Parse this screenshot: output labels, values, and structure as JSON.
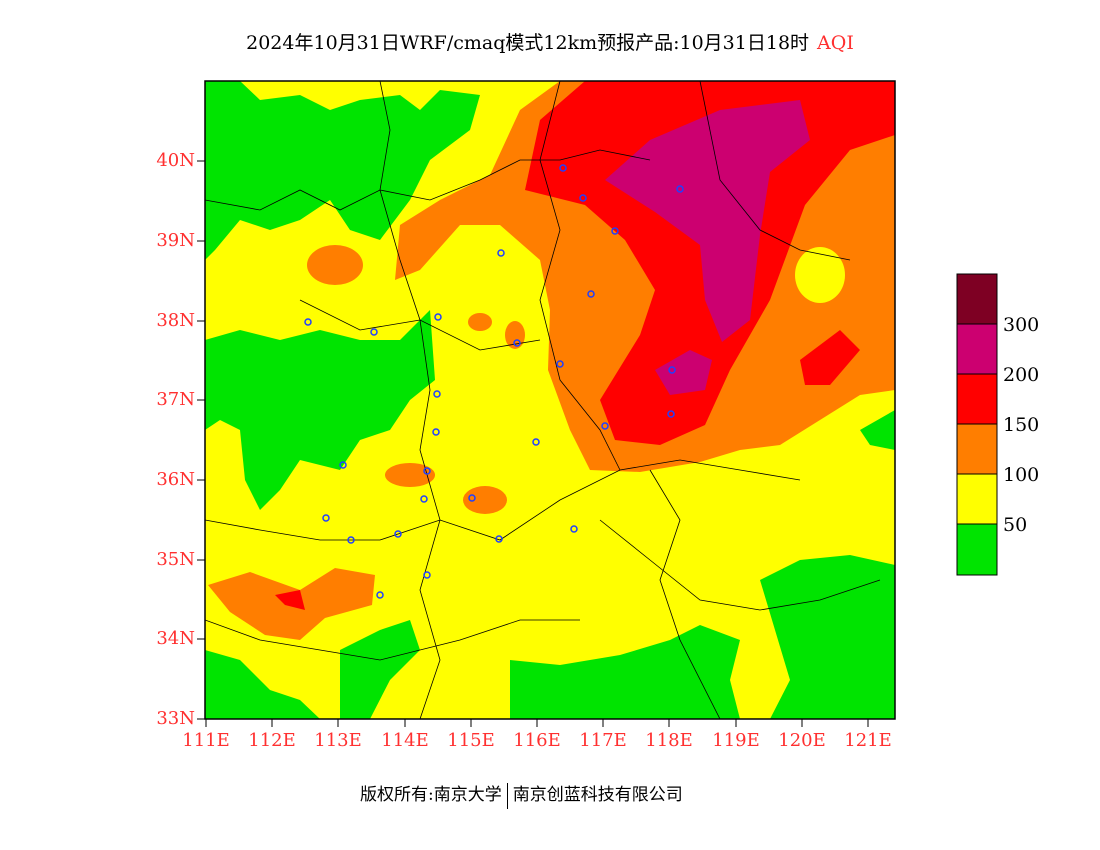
{
  "title": {
    "main": "2024年10月31日WRF/cmaq模式12km预报产品:10月31日18时",
    "variable": "AQI"
  },
  "map": {
    "lat_labels": [
      "40N",
      "39N",
      "38N",
      "37N",
      "36N",
      "35N",
      "34N",
      "33N"
    ],
    "lon_labels": [
      "111E",
      "112E",
      "113E",
      "114E",
      "115E",
      "116E",
      "117E",
      "118E",
      "119E",
      "120E",
      "121E"
    ]
  },
  "legend": {
    "labels": [
      "300",
      "200",
      "150",
      "100",
      "50"
    ],
    "colors": [
      "#7e0023",
      "#cc0070",
      "#ff0000",
      "#ff7e00",
      "#ffff00",
      "#00e400"
    ]
  },
  "footer": {
    "left": "版权所有:南京大学",
    "right": "南京创蓝科技有限公司"
  }
}
